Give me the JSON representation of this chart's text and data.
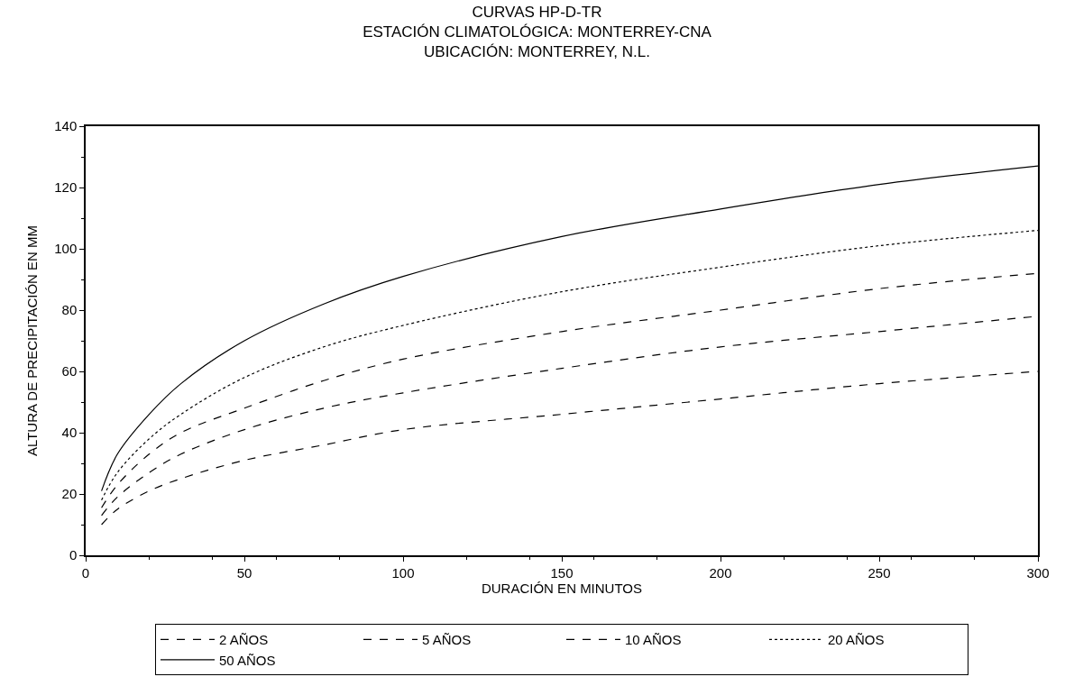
{
  "chart_data": {
    "type": "line",
    "title": "CURVAS HP-D-TR",
    "subtitle": "ESTACIÓN CLIMATOLÓGICA: MONTERREY-CNA\nUBICACIÓN: MONTERREY, N.L.",
    "xlabel": "DURACIÓN EN MINUTOS",
    "ylabel": "ALTURA DE PRECIPITACIÓN EN MM",
    "x": [
      5,
      10,
      20,
      30,
      50,
      75,
      100,
      150,
      200,
      250,
      300
    ],
    "series": [
      {
        "name": "2 AÑOS",
        "color": "#000000",
        "line_style": "dashed",
        "values": [
          10,
          15,
          21,
          25,
          31,
          36,
          41,
          46,
          51,
          56,
          60
        ]
      },
      {
        "name": "5 AÑOS",
        "color": "#000000",
        "line_style": "dashed",
        "values": [
          13,
          19,
          27,
          33,
          41,
          48,
          53,
          61,
          68,
          73,
          78
        ]
      },
      {
        "name": "10 AÑOS",
        "color": "#000000",
        "line_style": "dashed",
        "values": [
          15.5,
          23,
          33,
          40,
          48,
          57,
          64,
          73,
          80,
          87,
          92
        ]
      },
      {
        "name": "20 AÑOS",
        "color": "#000000",
        "line_style": "dotted",
        "values": [
          18,
          27,
          38,
          46,
          58,
          68,
          75,
          86,
          94,
          101,
          106
        ]
      },
      {
        "name": "50 AÑOS",
        "color": "#000000",
        "line_style": "solid",
        "values": [
          21,
          33,
          46,
          56,
          70,
          82,
          91,
          104,
          113,
          121,
          127
        ]
      }
    ],
    "xlim": [
      0,
      300
    ],
    "xticks": [
      0,
      50,
      100,
      150,
      200,
      250,
      300
    ],
    "ylim": [
      0,
      140
    ],
    "yticks": [
      0,
      20,
      40,
      60,
      80,
      100,
      120,
      140
    ],
    "legend": "bottom",
    "marker": "none"
  }
}
